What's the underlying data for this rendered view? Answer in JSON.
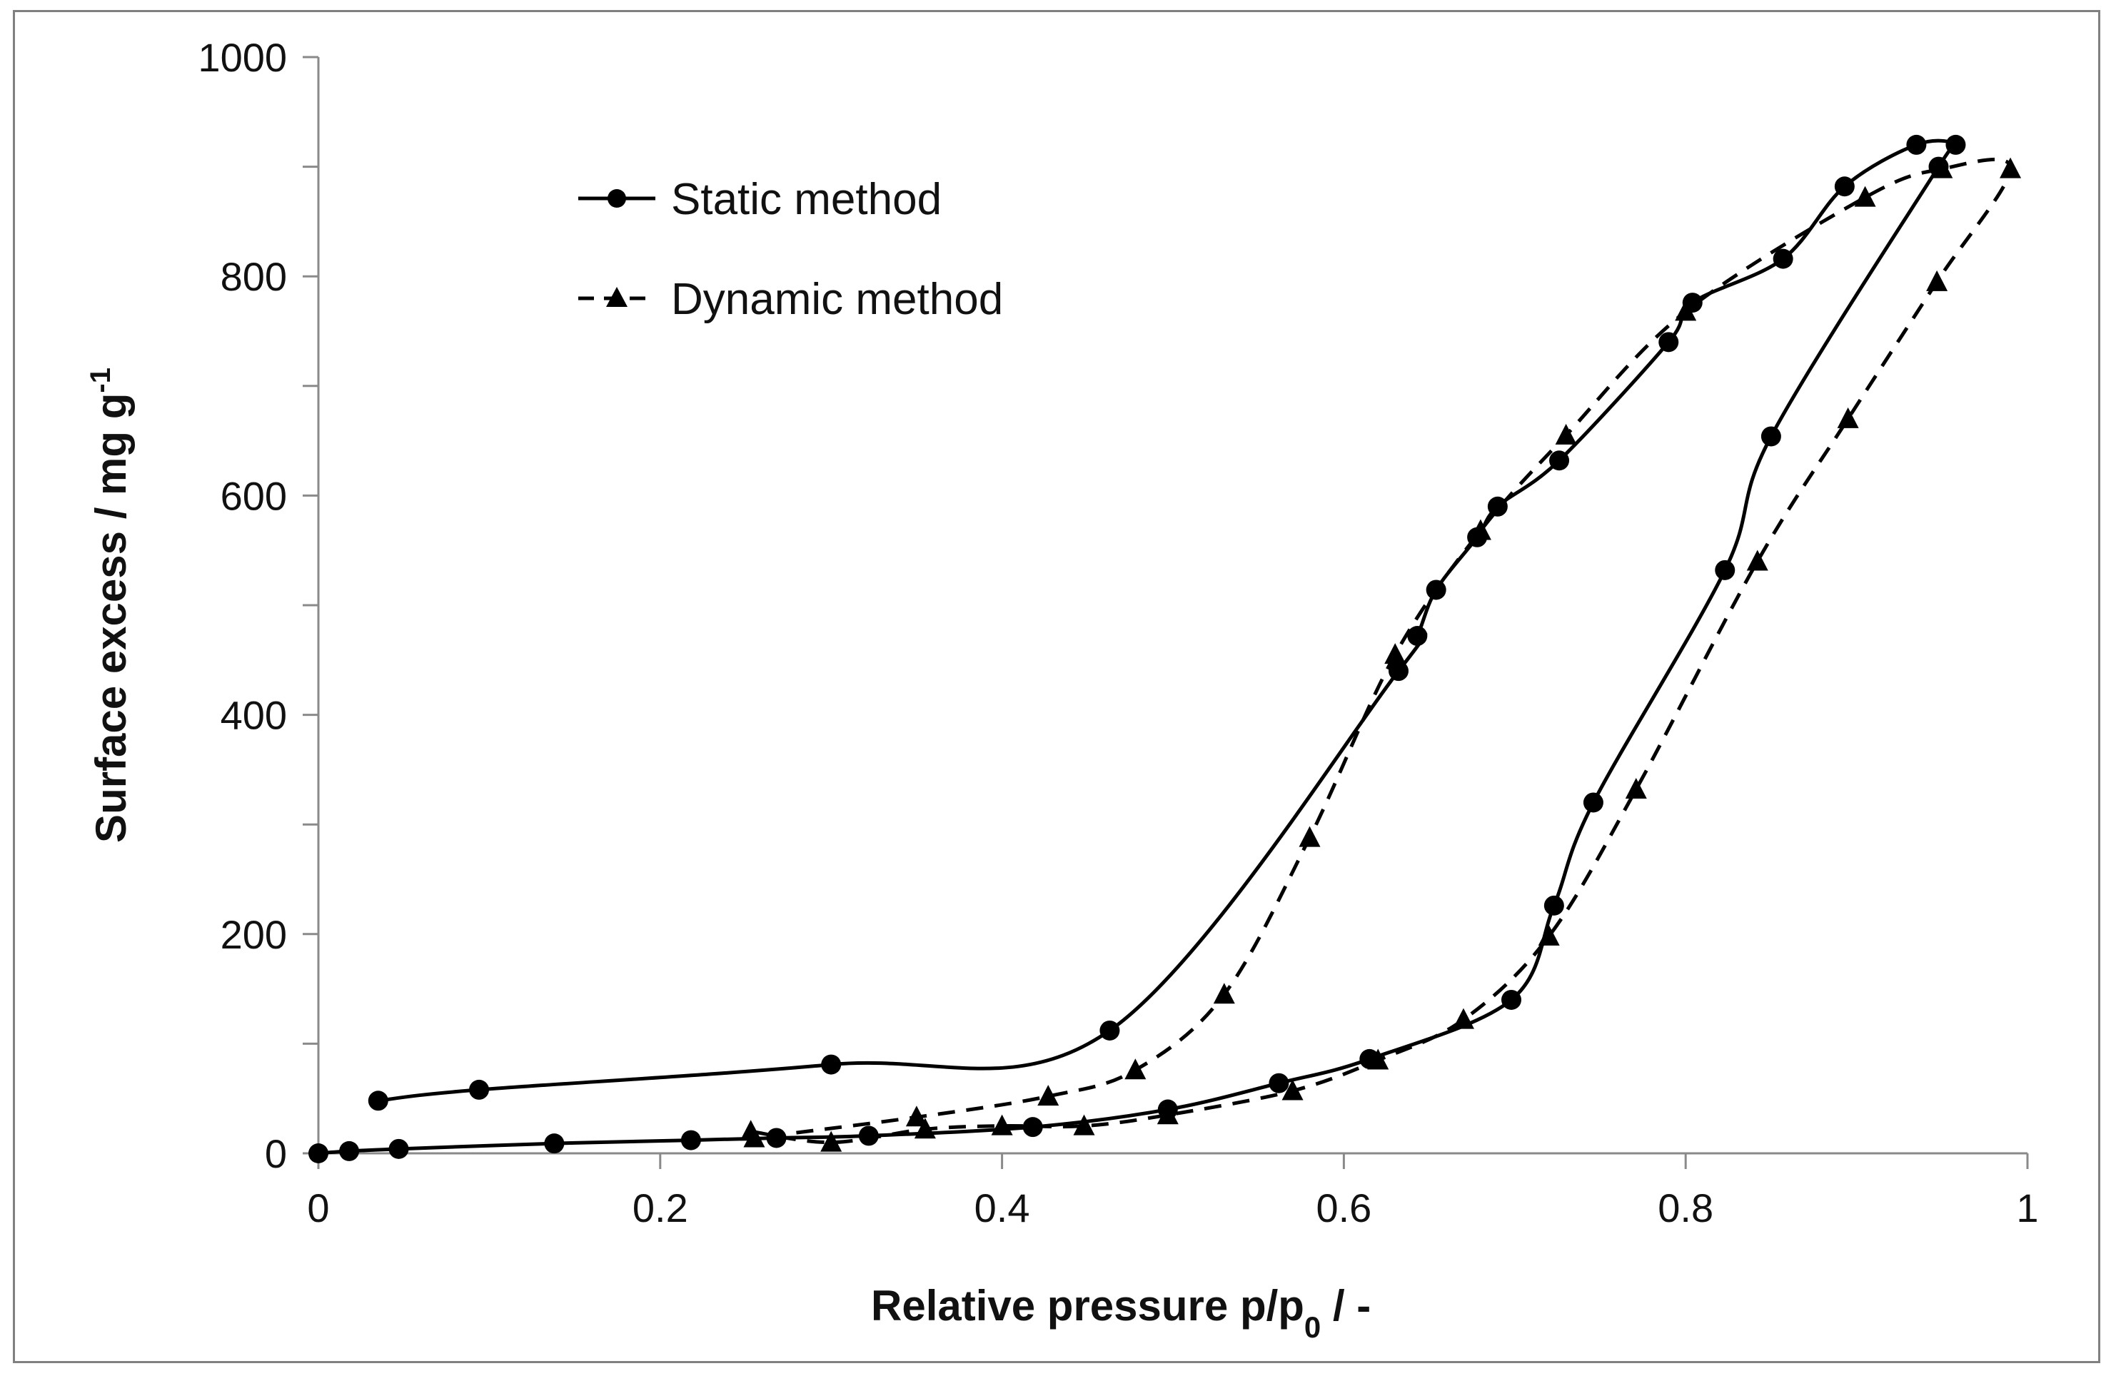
{
  "chart_data": {
    "type": "line",
    "title": "",
    "xlabel": {
      "main": "Relative pressure  p/p",
      "sub": "0",
      "suffix": "  / -"
    },
    "ylabel": {
      "main": "Surface excess  / mg g",
      "sup": "-1"
    },
    "xlim": [
      0,
      1
    ],
    "ylim": [
      0,
      1000
    ],
    "xticks": [
      0,
      0.2,
      0.4,
      0.6,
      0.8,
      1
    ],
    "xtick_labels": [
      "0",
      "0.2",
      "0.4",
      "0.6",
      "0.8",
      "1"
    ],
    "yticks": [
      0,
      200,
      400,
      600,
      800,
      1000
    ],
    "ytick_labels": [
      "0",
      "200",
      "400",
      "600",
      "800",
      "1000"
    ],
    "y_minor_step": 100,
    "grid": false,
    "legend_position": "top-left",
    "series": [
      {
        "name": "Static method",
        "marker": "circle",
        "line_style": "solid",
        "color": "#000000",
        "adsorption": [
          [
            0.0,
            0
          ],
          [
            0.018,
            2
          ],
          [
            0.047,
            4
          ],
          [
            0.138,
            9
          ],
          [
            0.218,
            12
          ],
          [
            0.268,
            14
          ],
          [
            0.322,
            16
          ],
          [
            0.418,
            24
          ],
          [
            0.497,
            40
          ],
          [
            0.562,
            64
          ],
          [
            0.615,
            86
          ],
          [
            0.698,
            140
          ],
          [
            0.723,
            226
          ],
          [
            0.746,
            320
          ],
          [
            0.823,
            532
          ],
          [
            0.85,
            654
          ],
          [
            0.948,
            900
          ]
        ],
        "desorption": [
          [
            0.958,
            920
          ],
          [
            0.935,
            920
          ],
          [
            0.893,
            882
          ],
          [
            0.857,
            816
          ],
          [
            0.804,
            776
          ],
          [
            0.79,
            740
          ],
          [
            0.726,
            632
          ],
          [
            0.69,
            590
          ],
          [
            0.678,
            562
          ],
          [
            0.654,
            514
          ],
          [
            0.643,
            472
          ],
          [
            0.632,
            440
          ],
          [
            0.463,
            112
          ],
          [
            0.3,
            81
          ],
          [
            0.094,
            58
          ],
          [
            0.035,
            48
          ]
        ]
      },
      {
        "name": "Dynamic method",
        "marker": "triangle",
        "line_style": "dashed",
        "color": "#000000",
        "adsorption": [
          [
            0.253,
            20
          ],
          [
            0.3,
            10
          ],
          [
            0.355,
            22
          ],
          [
            0.4,
            25
          ],
          [
            0.448,
            25
          ],
          [
            0.497,
            35
          ],
          [
            0.57,
            57
          ],
          [
            0.62,
            85
          ],
          [
            0.67,
            122
          ],
          [
            0.72,
            198
          ],
          [
            0.771,
            332
          ],
          [
            0.842,
            540
          ],
          [
            0.895,
            670
          ],
          [
            0.947,
            795
          ],
          [
            0.99,
            898
          ]
        ],
        "desorption": [
          [
            0.95,
            898
          ],
          [
            0.905,
            872
          ],
          [
            0.8,
            768
          ],
          [
            0.73,
            655
          ],
          [
            0.68,
            568
          ],
          [
            0.63,
            455
          ],
          [
            0.58,
            288
          ],
          [
            0.53,
            145
          ],
          [
            0.478,
            76
          ],
          [
            0.427,
            52
          ],
          [
            0.35,
            33
          ],
          [
            0.255,
            14
          ]
        ]
      }
    ]
  }
}
